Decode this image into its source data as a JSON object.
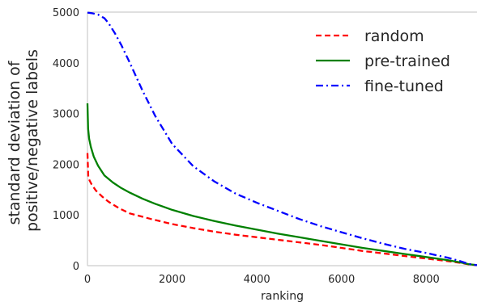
{
  "chart_data": {
    "type": "line",
    "title": "",
    "xlabel": "ranking",
    "ylabel_lines": [
      "standard deviation of",
      "positive/negative labels"
    ],
    "xlim": [
      0,
      9200
    ],
    "ylim": [
      0,
      5000
    ],
    "xticks": [
      0,
      2000,
      4000,
      6000,
      8000
    ],
    "yticks": [
      0,
      1000,
      2000,
      3000,
      4000,
      5000
    ],
    "grid": false,
    "legend_position": "top-right",
    "series": [
      {
        "name": "random",
        "color": "#ff0000",
        "dash": "dashed",
        "x": [
          0,
          20,
          50,
          100,
          200,
          350,
          500,
          750,
          1000,
          1500,
          2000,
          2500,
          3000,
          3500,
          4000,
          4500,
          5000,
          5500,
          6000,
          6500,
          7000,
          7500,
          8000,
          8500,
          8800,
          9000,
          9200
        ],
        "y": [
          2220,
          1750,
          1680,
          1600,
          1480,
          1360,
          1260,
          1130,
          1030,
          920,
          820,
          740,
          670,
          610,
          560,
          510,
          460,
          410,
          350,
          290,
          240,
          190,
          140,
          90,
          55,
          25,
          10
        ]
      },
      {
        "name": "pre-trained",
        "color": "#008000",
        "dash": "solid",
        "x": [
          0,
          15,
          40,
          80,
          150,
          250,
          400,
          600,
          800,
          1000,
          1300,
          1600,
          2000,
          2500,
          3000,
          3500,
          4000,
          4500,
          5000,
          5500,
          6000,
          6500,
          7000,
          7500,
          8000,
          8500,
          8800,
          9000,
          9200
        ],
        "y": [
          3200,
          2700,
          2500,
          2340,
          2150,
          1970,
          1780,
          1640,
          1530,
          1440,
          1320,
          1220,
          1100,
          980,
          880,
          790,
          710,
          630,
          560,
          490,
          420,
          350,
          290,
          230,
          170,
          110,
          65,
          30,
          10
        ]
      },
      {
        "name": "fine-tuned",
        "color": "#0000ff",
        "dash": "dashdot",
        "x": [
          0,
          100,
          250,
          400,
          500,
          650,
          800,
          1000,
          1300,
          1600,
          2000,
          2500,
          3000,
          3500,
          4000,
          4500,
          5000,
          5500,
          6000,
          6500,
          7000,
          7500,
          8000,
          8500,
          8800,
          9000,
          9200
        ],
        "y": [
          4990,
          4980,
          4950,
          4880,
          4780,
          4580,
          4350,
          4000,
          3450,
          2950,
          2400,
          1960,
          1660,
          1420,
          1240,
          1080,
          920,
          780,
          660,
          540,
          430,
          330,
          250,
          160,
          90,
          35,
          10
        ]
      }
    ]
  }
}
